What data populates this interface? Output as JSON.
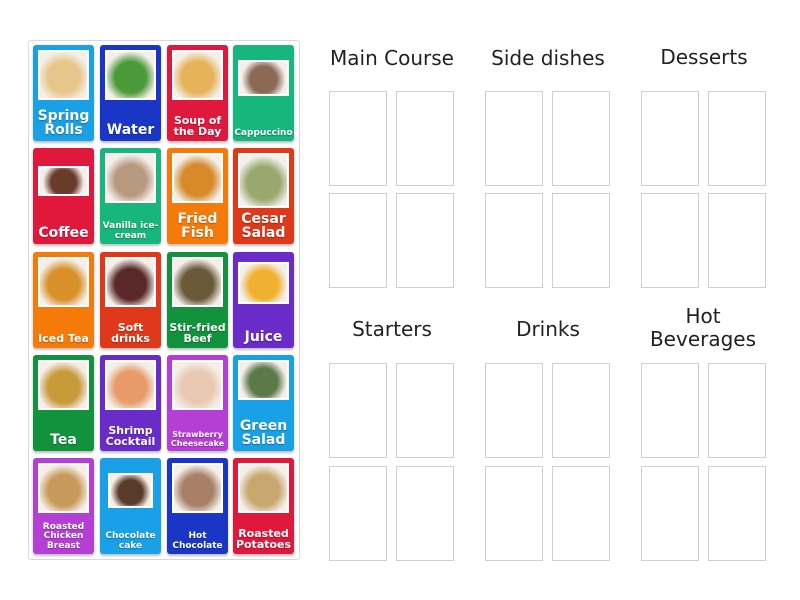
{
  "cards": [
    {
      "label": "Spring Rolls",
      "color": "#1aa0e6",
      "image": "spring-rolls",
      "tone": "#e8c58a"
    },
    {
      "label": "Water",
      "color": "#1a36c6",
      "image": "water-bottle",
      "tone": "#4a9a3a"
    },
    {
      "label": "Soup of the Day",
      "color": "#e0183c",
      "image": "soup",
      "tone": "#e6b25a"
    },
    {
      "label": "Cappuccino",
      "color": "#16b67c",
      "image": "cappuccino",
      "tone": "#8a6a55"
    },
    {
      "label": "Coffee",
      "color": "#e0183c",
      "image": "coffee",
      "tone": "#6a3a2a"
    },
    {
      "label": "Vanilla ice-cream",
      "color": "#16b67c",
      "image": "vanilla-ice-cream",
      "tone": "#b89a80"
    },
    {
      "label": "Fried Fish",
      "color": "#f57a0a",
      "image": "fried-fish",
      "tone": "#d8892a"
    },
    {
      "label": "Cesar Salad",
      "color": "#e0381a",
      "image": "cesar-salad",
      "tone": "#9aa870"
    },
    {
      "label": "Iced Tea",
      "color": "#f57a0a",
      "image": "iced-tea",
      "tone": "#d8902a"
    },
    {
      "label": "Soft drinks",
      "color": "#e0381a",
      "image": "soft-drinks",
      "tone": "#5a2a2a"
    },
    {
      "label": "Stir-fried Beef",
      "color": "#12923c",
      "image": "stir-fried-beef",
      "tone": "#6a5a3a"
    },
    {
      "label": "Juice",
      "color": "#6a2cc8",
      "image": "juice",
      "tone": "#f2b030"
    },
    {
      "label": "Tea",
      "color": "#12923c",
      "image": "tea",
      "tone": "#c89a3a"
    },
    {
      "label": "Shrimp Cocktail",
      "color": "#6a2cc8",
      "image": "shrimp-cocktail",
      "tone": "#e89a6a"
    },
    {
      "label": "Strawberry Cheesecake",
      "color": "#b43ed6",
      "image": "strawberry-cheesecake",
      "tone": "#e8c8b0"
    },
    {
      "label": "Green Salad",
      "color": "#1aa0e6",
      "image": "green-salad",
      "tone": "#5a7a4a"
    },
    {
      "label": "Roasted Chicken Breast",
      "color": "#b43ed6",
      "image": "roasted-chicken",
      "tone": "#c89a5a"
    },
    {
      "label": "Chocolate cake",
      "color": "#1aa0e6",
      "image": "chocolate-cake",
      "tone": "#5a3a2a"
    },
    {
      "label": "Hot Chocolate",
      "color": "#1a36c6",
      "image": "hot-chocolate",
      "tone": "#a88068"
    },
    {
      "label": "Roasted Potatoes",
      "color": "#e0183c",
      "image": "roasted-potatoes",
      "tone": "#c8a870"
    }
  ],
  "groups": [
    {
      "title": "Main Course",
      "slots": 4
    },
    {
      "title": "Side dishes",
      "slots": 4
    },
    {
      "title": "Desserts",
      "slots": 4
    },
    {
      "title": "Starters",
      "slots": 4
    },
    {
      "title": "Drinks",
      "slots": 4
    },
    {
      "title": "Hot Beverages",
      "slots": 4
    }
  ]
}
